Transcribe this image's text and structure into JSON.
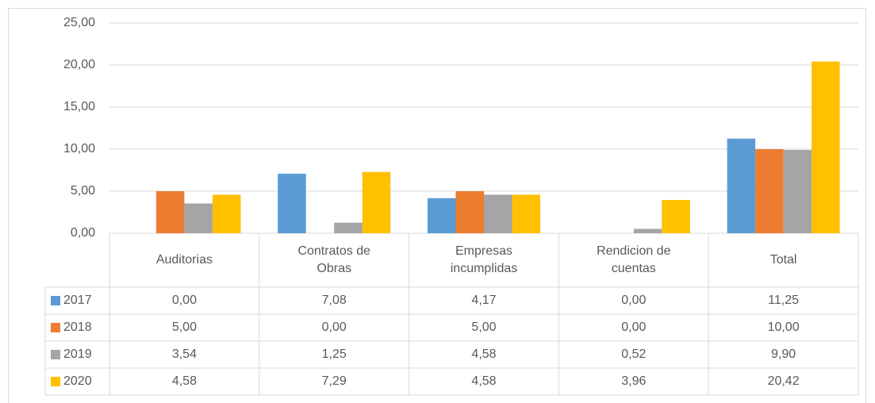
{
  "chart_data": {
    "type": "bar",
    "categories": [
      "Auditorias",
      "Contratos de Obras",
      "Empresas incumplidas",
      "Rendicion de cuentas",
      "Total"
    ],
    "series": [
      {
        "name": "2017",
        "color": "#5b9bd5",
        "values": [
          0,
          7.08,
          4.17,
          0,
          11.25
        ],
        "value_labels": [
          "0,00",
          "7,08",
          "4,17",
          "0,00",
          "11,25"
        ]
      },
      {
        "name": "2018",
        "color": "#ed7d31",
        "values": [
          5,
          0,
          5,
          0,
          10
        ],
        "value_labels": [
          "5,00",
          "0,00",
          "5,00",
          "0,00",
          "10,00"
        ]
      },
      {
        "name": "2019",
        "color": "#a5a5a5",
        "values": [
          3.54,
          1.25,
          4.58,
          0.52,
          9.9
        ],
        "value_labels": [
          "3,54",
          "1,25",
          "4,58",
          "0,52",
          "9,90"
        ]
      },
      {
        "name": "2020",
        "color": "#ffc000",
        "values": [
          4.58,
          7.29,
          4.58,
          3.96,
          20.42
        ],
        "value_labels": [
          "4,58",
          "7,29",
          "4,58",
          "3,96",
          "20,42"
        ]
      }
    ],
    "ylim": [
      0,
      25
    ],
    "yticks": [
      {
        "value": 0,
        "label": "0,00"
      },
      {
        "value": 5,
        "label": "5,00"
      },
      {
        "value": 10,
        "label": "10,00"
      },
      {
        "value": 15,
        "label": "15,00"
      },
      {
        "value": 20,
        "label": "20,00"
      },
      {
        "value": 25,
        "label": "25,00"
      }
    ],
    "grid": true
  }
}
